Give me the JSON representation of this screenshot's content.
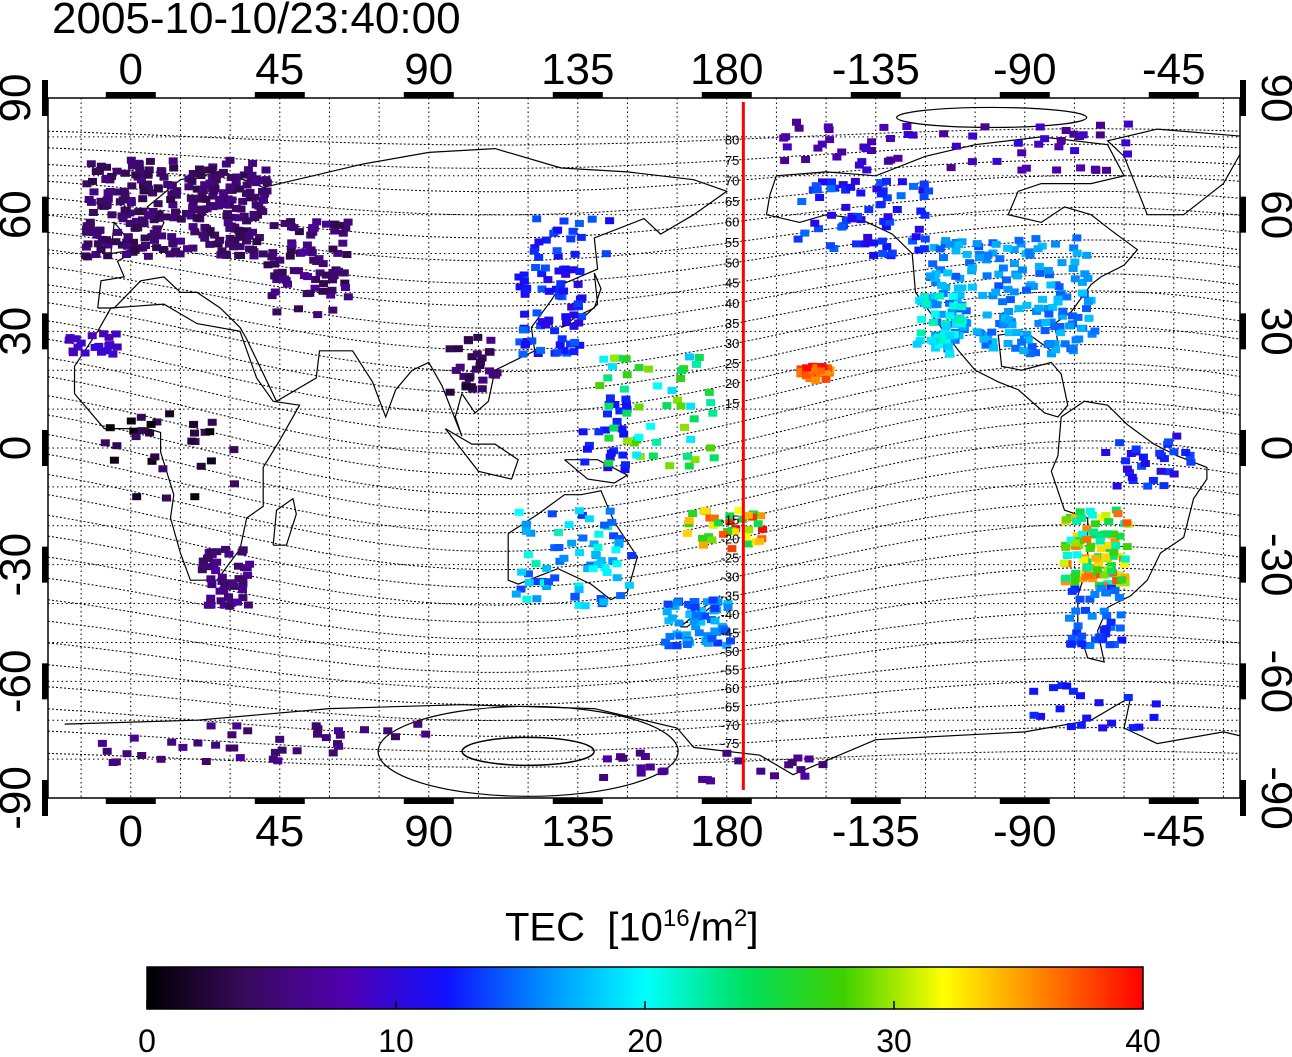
{
  "title": "2005-10-10/23:40:00",
  "map": {
    "lon_ticks": [
      {
        "lon": 0,
        "label": "0"
      },
      {
        "lon": 45,
        "label": "45"
      },
      {
        "lon": 90,
        "label": "90"
      },
      {
        "lon": 135,
        "label": "135"
      },
      {
        "lon": 180,
        "label": "180"
      },
      {
        "lon": 225,
        "label": "-135"
      },
      {
        "lon": 270,
        "label": "-90"
      },
      {
        "lon": 315,
        "label": "-45"
      }
    ],
    "lat_ticks": [
      {
        "lat": 90,
        "label": "90"
      },
      {
        "lat": 60,
        "label": "60"
      },
      {
        "lat": 30,
        "label": "30"
      },
      {
        "lat": 0,
        "label": "0"
      },
      {
        "lat": -30,
        "label": "-30"
      },
      {
        "lat": -60,
        "label": "-60"
      },
      {
        "lat": -90,
        "label": "-90"
      }
    ],
    "lon_range": [
      -25,
      335
    ],
    "lat_range": [
      -90,
      90
    ],
    "meridian_line": {
      "lon": 185,
      "color": "#ff0000"
    },
    "contour_labels": [
      "80",
      "75",
      "70",
      "65",
      "60",
      "55",
      "50",
      "45",
      "40",
      "35",
      "30",
      "25",
      "20",
      "15",
      "-15",
      "-20",
      "-25",
      "-30",
      "-35",
      "-40",
      "-45",
      "-50",
      "-55",
      "-60",
      "-65",
      "-70",
      "-75"
    ]
  },
  "colorbar": {
    "title_main": "TEC",
    "title_unit_open": "[10",
    "title_unit_exp": "16",
    "title_unit_mid": "/m",
    "title_unit_exp2": "2",
    "title_unit_close": "]",
    "ticks": [
      "0",
      "10",
      "20",
      "30",
      "40"
    ],
    "range": [
      0,
      40
    ],
    "colors": [
      "#000000",
      "#3a0a5e",
      "#5000b0",
      "#1010ff",
      "#0090ff",
      "#00ffff",
      "#00e060",
      "#40d000",
      "#ffff00",
      "#ff8000",
      "#ff0000"
    ]
  }
}
